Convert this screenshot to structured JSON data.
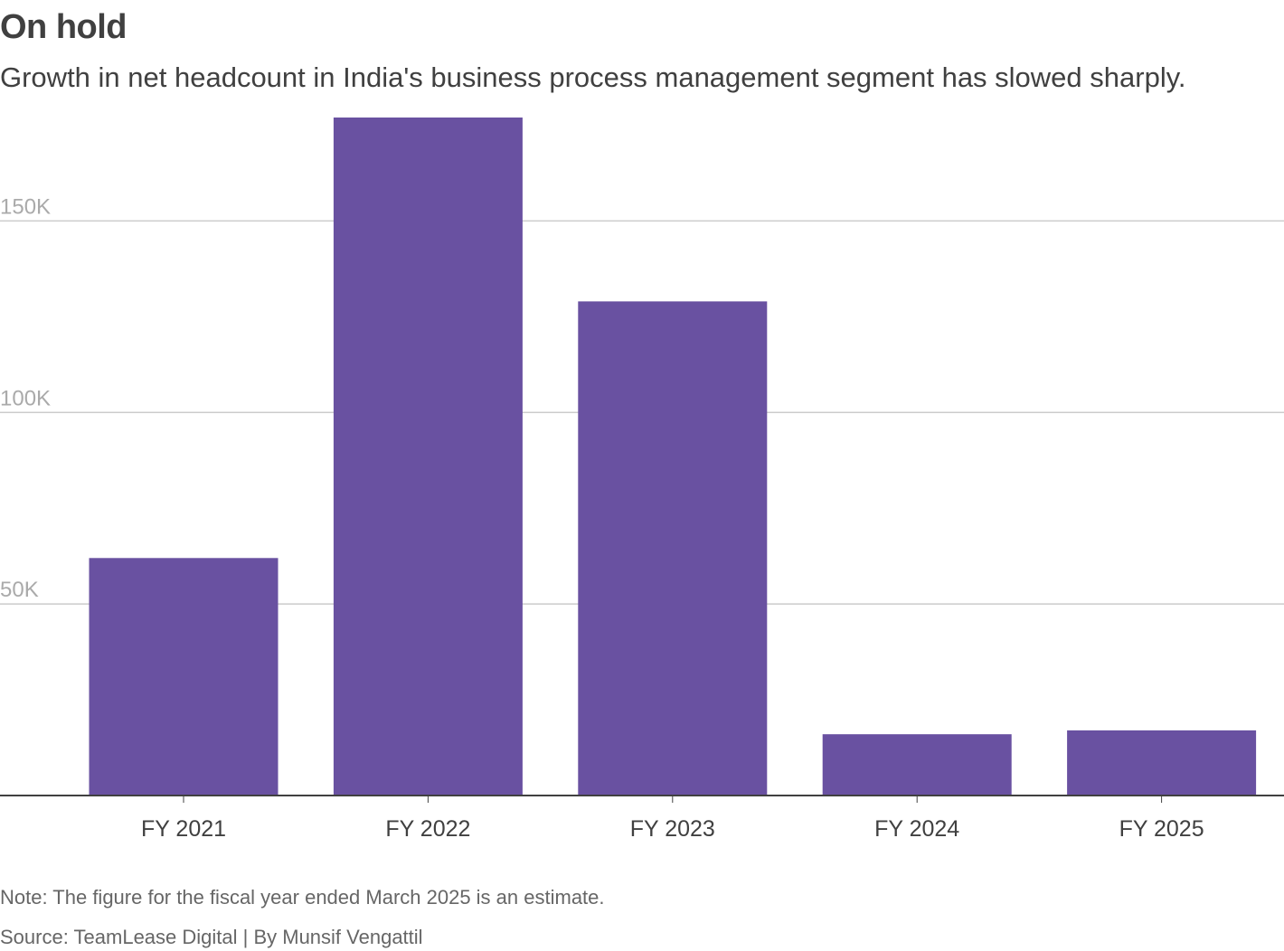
{
  "title": "On hold",
  "subtitle": "Growth in net headcount in India's business process management segment has slowed sharply.",
  "note": "Note: The figure for the fiscal year ended March 2025 is an estimate.",
  "source": "Source: TeamLease Digital | By Munsif Vengattil",
  "colors": {
    "bar": "#6951a1",
    "grid": "#cccccc",
    "axis": "#404040",
    "tick_label": "#aaaaaa",
    "category_label": "#404040"
  },
  "chart_data": {
    "type": "bar",
    "title": "On hold",
    "subtitle": "Growth in net headcount in India's business process management segment has slowed sharply.",
    "categories": [
      "FY 2021",
      "FY 2022",
      "FY 2023",
      "FY 2024",
      "FY 2025"
    ],
    "values": [
      62000,
      177000,
      129000,
      16000,
      17000
    ],
    "xlabel": "",
    "ylabel": "",
    "ylim": [
      0,
      177000
    ],
    "yticks": [
      50000,
      100000,
      150000
    ],
    "ytick_labels": [
      "50K",
      "100K",
      "150K"
    ],
    "grid": true,
    "legend": "none"
  }
}
